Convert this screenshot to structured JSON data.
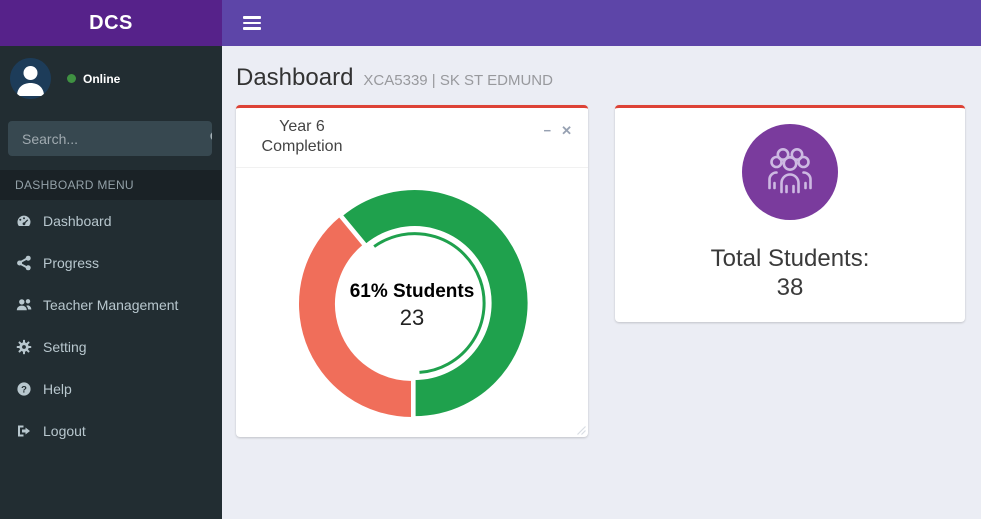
{
  "app": {
    "logo_text": "DCS"
  },
  "sidebar": {
    "user": {
      "status_label": "Online"
    },
    "search": {
      "placeholder": "Search..."
    },
    "menu_header": "DASHBOARD MENU",
    "items": [
      {
        "label": "Dashboard",
        "icon": "dashboard-icon"
      },
      {
        "label": "Progress",
        "icon": "progress-icon"
      },
      {
        "label": "Teacher Management",
        "icon": "users-icon"
      },
      {
        "label": "Setting",
        "icon": "gear-icon"
      },
      {
        "label": "Help",
        "icon": "help-icon"
      },
      {
        "label": "Logout",
        "icon": "logout-icon"
      }
    ]
  },
  "main": {
    "page_title": "Dashboard",
    "page_subtitle": "XCA5339 | SK ST EDMUND",
    "completion_card": {
      "title": "Year 6 Completion",
      "collapse_glyph": "−",
      "close_glyph": "✕"
    },
    "total_card": {
      "label": "Total Students:",
      "value": "38",
      "icon": "students-group-icon"
    }
  },
  "chart_data": {
    "type": "pie",
    "donut": true,
    "title": "Year 6 Completion",
    "slices": [
      {
        "percent": 61,
        "color": "#1fa14d"
      },
      {
        "percent": 39,
        "color": "#f06e5a"
      }
    ],
    "center": {
      "primary": "61% Students",
      "secondary": "23"
    },
    "start_angle": "bottom",
    "direction": "counterclockwise",
    "legend": "none"
  },
  "colors": {
    "navbar": "#5d45a8",
    "logo_bg": "#56228a",
    "sidebar_bg": "#222d32",
    "card_accent_red": "#dd4236",
    "donut_green": "#1fa14d",
    "donut_red": "#f06e5a",
    "total_icon_bg": "#7a3b9d",
    "online_dot": "#3f9142",
    "content_bg": "#ebedf4"
  }
}
